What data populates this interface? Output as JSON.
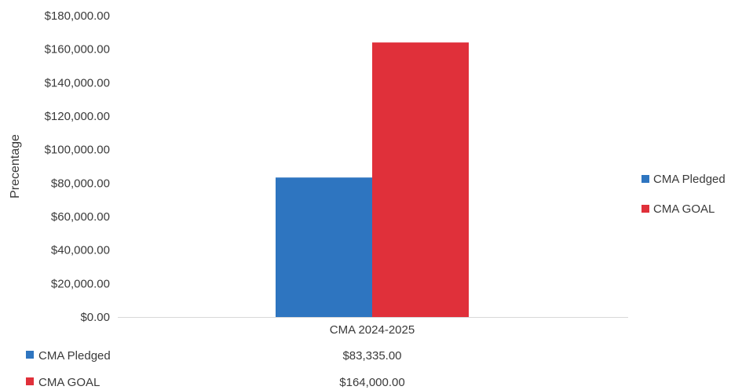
{
  "chart_data": {
    "type": "bar",
    "title": "",
    "xlabel": "",
    "ylabel": "Precentage",
    "categories": [
      "CMA 2024-2025"
    ],
    "series": [
      {
        "name": "CMA Pledged",
        "values": [
          83335
        ],
        "color": "#2E75C0",
        "table_value": "$83,335.00"
      },
      {
        "name": "CMA GOAL",
        "values": [
          164000
        ],
        "color": "#E0303A",
        "table_value": "$164,000.00"
      }
    ],
    "ylim": [
      0,
      180000
    ],
    "yticks": [
      0,
      20000,
      40000,
      60000,
      80000,
      100000,
      120000,
      140000,
      160000,
      180000
    ],
    "ytick_labels": [
      "$0.00",
      "$20,000.00",
      "$40,000.00",
      "$60,000.00",
      "$80,000.00",
      "$100,000.00",
      "$120,000.00",
      "$140,000.00",
      "$160,000.00",
      "$180,000.00"
    ],
    "grid": false,
    "legend": "right",
    "data_table": true
  }
}
